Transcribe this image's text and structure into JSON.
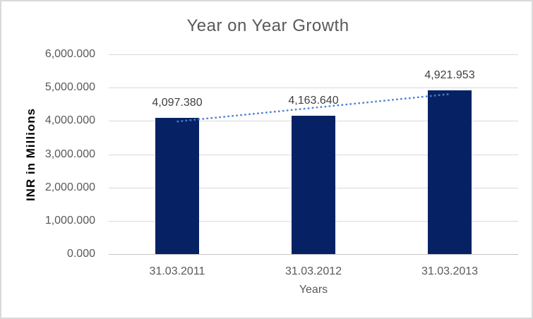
{
  "chart_data": {
    "type": "bar",
    "title": "Year on Year Growth",
    "xlabel": "Years",
    "ylabel": "INR in Millions",
    "categories": [
      "31.03.2011",
      "31.03.2012",
      "31.03.2013"
    ],
    "values": [
      4097.38,
      4163.64,
      4921.953
    ],
    "data_labels": [
      "4,097.380",
      "4,163.640",
      "4,921.953"
    ],
    "series_name": "INR in Millions",
    "y_ticks": [
      {
        "value": 0,
        "label": "0.000"
      },
      {
        "value": 1000,
        "label": "1,000.000"
      },
      {
        "value": 2000,
        "label": "2,000.000"
      },
      {
        "value": 3000,
        "label": "3,000.000"
      },
      {
        "value": 4000,
        "label": "4,000.000"
      },
      {
        "value": 5000,
        "label": "5,000.000"
      },
      {
        "value": 6000,
        "label": "6,000.000"
      }
    ],
    "ylim": [
      0,
      6000
    ],
    "grid": true,
    "legend": "none",
    "trendline": {
      "type": "linear",
      "style": "dotted"
    },
    "colors": {
      "bar": "#072264",
      "trendline": "#4E81D2",
      "gridline": "#D9D9D9",
      "axis_line": "#C6C6C6",
      "title_text": "#595959",
      "tick_text": "#595959",
      "data_label_text": "#404040",
      "axis_title_text": "#000000",
      "frame_border": "#D9D9D9"
    }
  }
}
